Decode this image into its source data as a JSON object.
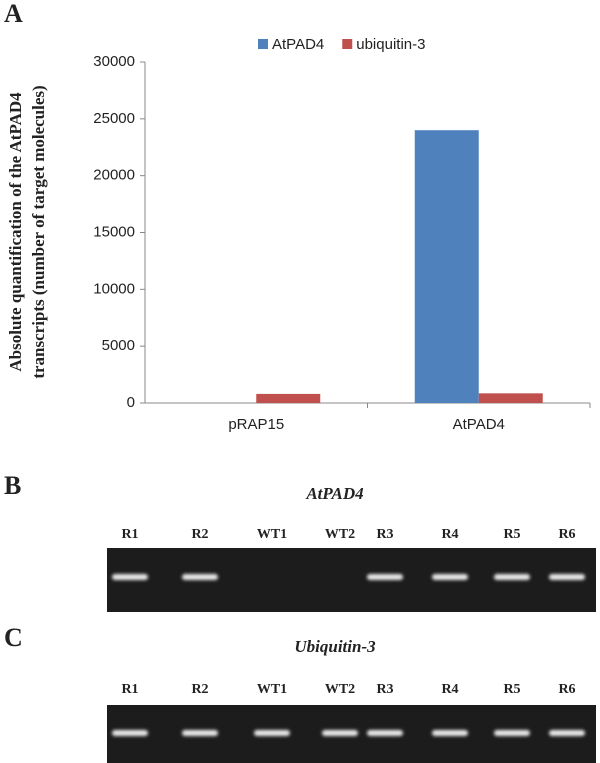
{
  "panels": [
    "A",
    "B",
    "C"
  ],
  "chart_data": {
    "type": "bar",
    "ylabel": [
      "Absolute quantification of the AtPAD4",
      "transcripts (number of target molecules)"
    ],
    "categories": [
      "pRAP15",
      "AtPAD4"
    ],
    "series": [
      {
        "name": "AtPAD4",
        "color": "#4f81bd",
        "values": [
          0,
          24000
        ]
      },
      {
        "name": "ubiquitin-3",
        "color": "#c0504d",
        "values": [
          800,
          850
        ]
      }
    ],
    "ylim": [
      0,
      30000
    ],
    "yticks": [
      0,
      5000,
      10000,
      15000,
      20000,
      25000,
      30000
    ],
    "grid": false,
    "legend": "top"
  },
  "gels": [
    {
      "title": "AtPAD4",
      "lanes": [
        "R1",
        "R2",
        "WT1",
        "WT2",
        "R3",
        "R4",
        "R5",
        "R6"
      ],
      "bands": [
        true,
        true,
        false,
        false,
        true,
        true,
        true,
        true
      ]
    },
    {
      "title": "Ubiquitin-3",
      "lanes": [
        "R1",
        "R2",
        "WT1",
        "WT2",
        "R3",
        "R4",
        "R5",
        "R6"
      ],
      "bands": [
        true,
        true,
        true,
        true,
        true,
        true,
        true,
        true
      ]
    }
  ]
}
